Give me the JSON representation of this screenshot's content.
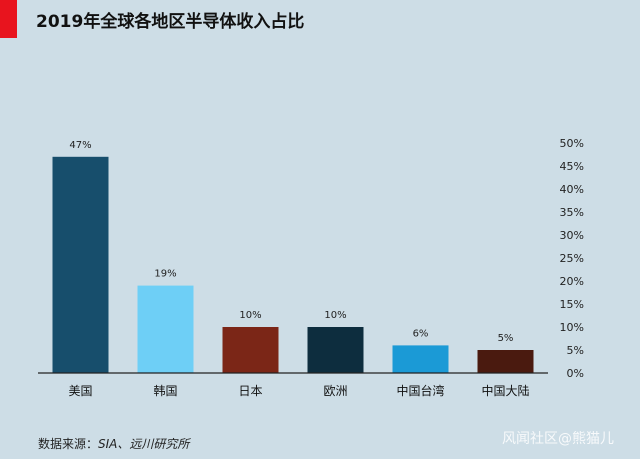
{
  "title": "2019年全球各地区半导体收入占比",
  "source": {
    "prefix": "数据来源：",
    "text": "SIA、远川研究所"
  },
  "watermark": "风闻社区@熊猫儿",
  "colors": {
    "accent": "#e8141e",
    "background": "#cddde6",
    "axis": "#222222"
  },
  "chart_data": {
    "type": "bar",
    "title": "2019年全球各地区半导体收入占比",
    "categories": [
      "美国",
      "韩国",
      "日本",
      "欧洲",
      "中国台湾",
      "中国大陆"
    ],
    "values": [
      47,
      19,
      10,
      10,
      6,
      5
    ],
    "value_labels": [
      "47%",
      "19%",
      "10%",
      "10%",
      "6%",
      "5%"
    ],
    "bar_colors": [
      "#174e6c",
      "#6ecff6",
      "#7b2617",
      "#0d2d3e",
      "#1b9ad6",
      "#4a1a0f"
    ],
    "ylim": [
      0,
      50
    ],
    "yticks": [
      "0%",
      "5%",
      "10%",
      "15%",
      "20%",
      "25%",
      "30%",
      "35%",
      "40%",
      "45%",
      "50%"
    ],
    "y_axis_side": "right",
    "grid": false,
    "legend": "none"
  }
}
